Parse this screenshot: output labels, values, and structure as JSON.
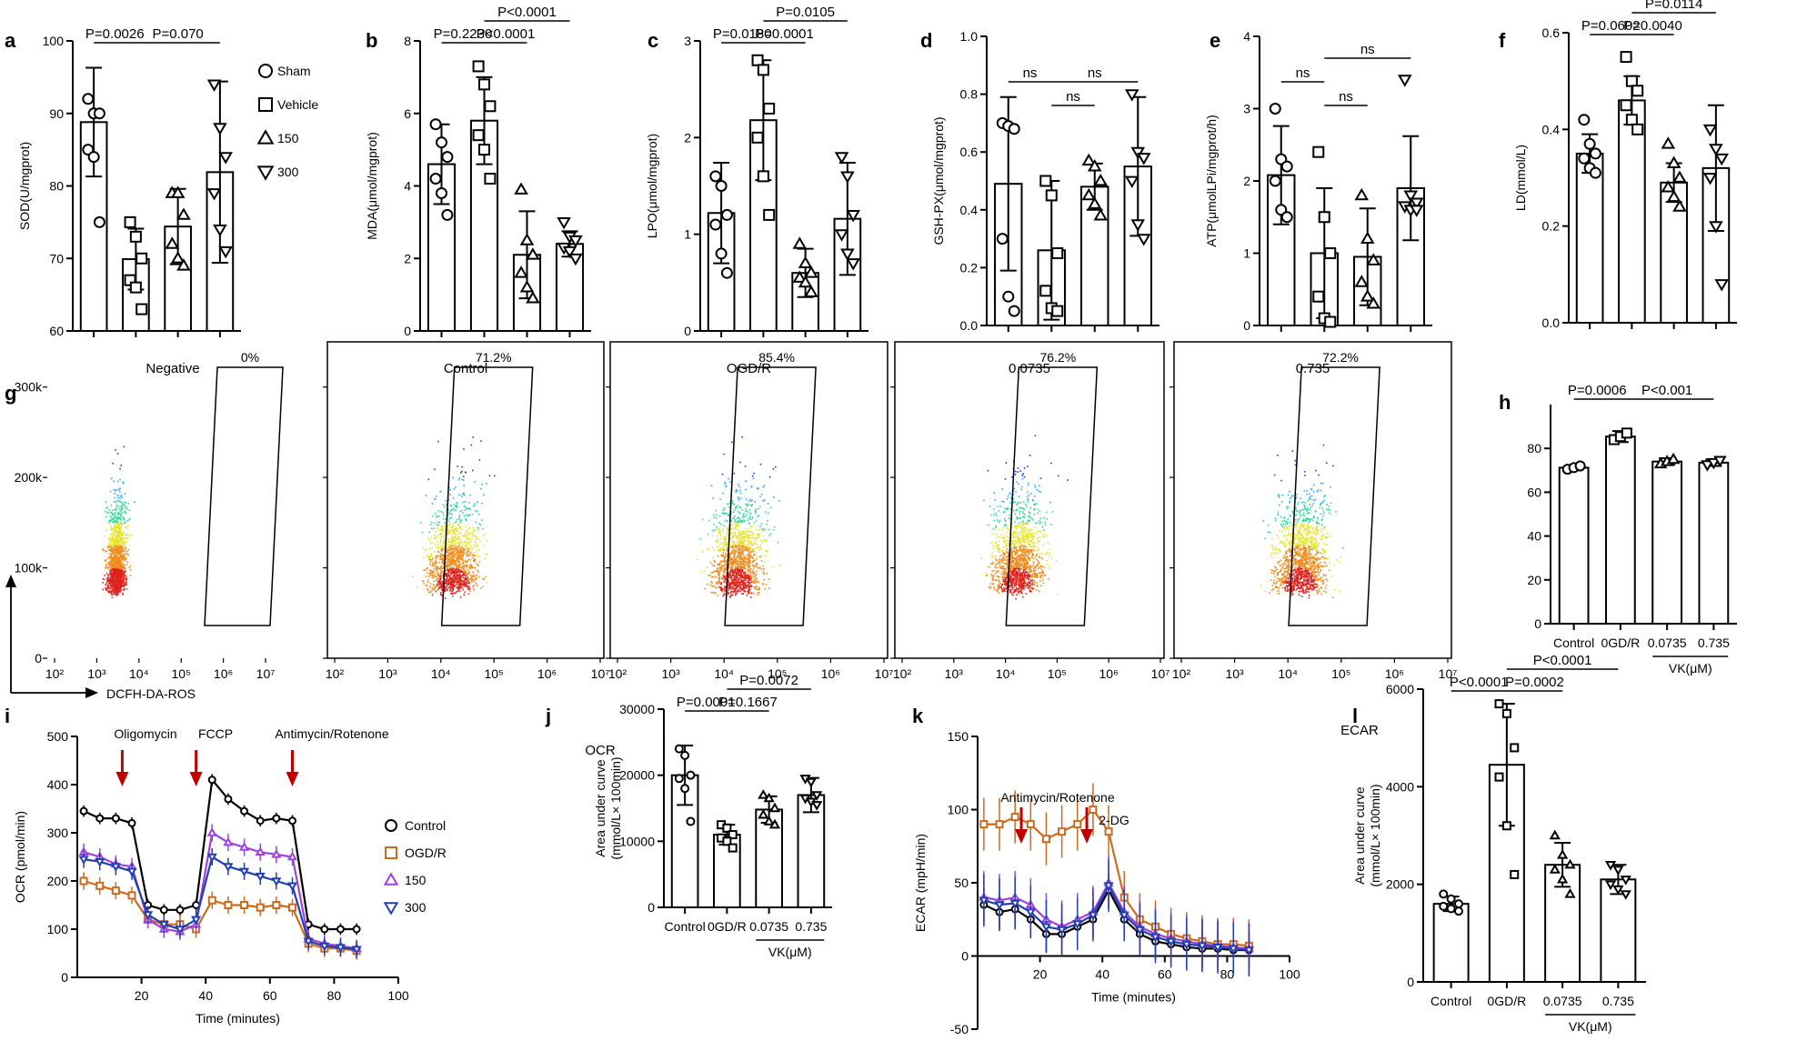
{
  "chart_data": [
    {
      "id": "a",
      "type": "bar",
      "panel_label": "a",
      "ylabel": "SOD(U/mgprot)",
      "ylim": [
        60,
        100
      ],
      "yticks": [
        60,
        70,
        80,
        90,
        100
      ],
      "categories": [
        "Sham",
        "Vehicle",
        "150",
        "300"
      ],
      "means": [
        88.8,
        69.9,
        74.4,
        81.9
      ],
      "sd": [
        7.5,
        4.2,
        5.2,
        12.5
      ],
      "points": [
        [
          92,
          90,
          90,
          85,
          84,
          75
        ],
        [
          75,
          73,
          70,
          67,
          66,
          63
        ],
        [
          79,
          79,
          76,
          72,
          70,
          69
        ],
        [
          94,
          88,
          84,
          79,
          74,
          71
        ]
      ],
      "comparisons": [
        {
          "from": 0,
          "to": 1,
          "label": "P=0.0026",
          "level": 0
        },
        {
          "from": 1,
          "to": 3,
          "label": "P=0.070",
          "level": 0
        }
      ],
      "legend": [
        "Sham",
        "Vehicle",
        "150",
        "300"
      ]
    },
    {
      "id": "b",
      "type": "bar",
      "panel_label": "b",
      "ylabel": "MDA(μmol/mgprot)",
      "ylim": [
        0,
        8
      ],
      "yticks": [
        0,
        2,
        4,
        6,
        8
      ],
      "categories": [
        "Sham",
        "Vehicle",
        "150",
        "300"
      ],
      "means": [
        4.6,
        5.8,
        2.1,
        2.4
      ],
      "sd": [
        1.1,
        1.2,
        1.2,
        0.35
      ],
      "points": [
        [
          5.7,
          5.2,
          4.8,
          4.2,
          3.8,
          3.2
        ],
        [
          7.3,
          6.8,
          6.2,
          5.4,
          5.0,
          4.2
        ],
        [
          3.9,
          2.5,
          2.1,
          1.6,
          1.2,
          0.9
        ],
        [
          3.0,
          2.6,
          2.5,
          2.3,
          2.2,
          2.0
        ]
      ],
      "comparisons": [
        {
          "from": 0,
          "to": 1,
          "label": "P=0.2230",
          "level": 0
        },
        {
          "from": 1,
          "to": 2,
          "label": "P<0.0001",
          "level": 0
        },
        {
          "from": 1,
          "to": 3,
          "label": "P<0.0001",
          "level": 1
        }
      ]
    },
    {
      "id": "c",
      "type": "bar",
      "panel_label": "c",
      "ylabel": "LPO(μmol/mgprot)",
      "ylim": [
        0,
        3
      ],
      "yticks": [
        0,
        1,
        2,
        3
      ],
      "categories": [
        "Sham",
        "Vehicle",
        "150",
        "300"
      ],
      "means": [
        1.22,
        2.18,
        0.6,
        1.16
      ],
      "sd": [
        0.52,
        0.62,
        0.25,
        0.58
      ],
      "points": [
        [
          1.6,
          1.5,
          1.2,
          1.1,
          0.8,
          0.6
        ],
        [
          2.8,
          2.7,
          2.3,
          2.0,
          1.6,
          1.2
        ],
        [
          0.9,
          0.7,
          0.6,
          0.55,
          0.5,
          0.4
        ],
        [
          1.8,
          1.6,
          1.2,
          1.0,
          0.8,
          0.7
        ]
      ],
      "comparisons": [
        {
          "from": 0,
          "to": 1,
          "label": "P=0.0180",
          "level": 0
        },
        {
          "from": 1,
          "to": 2,
          "label": "P=0.0001",
          "level": 0
        },
        {
          "from": 1,
          "to": 3,
          "label": "P=0.0105",
          "level": 1
        }
      ]
    },
    {
      "id": "d",
      "type": "bar",
      "panel_label": "d",
      "ylabel": "GSH-PX(μmol/mgprot)",
      "ylim": [
        0,
        1
      ],
      "yticks": [
        0,
        0.2,
        0.4,
        0.6,
        0.8,
        1.0
      ],
      "categories": [
        "Sham",
        "Vehicle",
        "150",
        "300"
      ],
      "means": [
        0.49,
        0.26,
        0.48,
        0.55
      ],
      "sd": [
        0.3,
        0.24,
        0.08,
        0.24
      ],
      "points": [
        [
          0.7,
          0.69,
          0.68,
          0.3,
          0.1,
          0.05
        ],
        [
          0.5,
          0.45,
          0.25,
          0.12,
          0.06,
          0.05
        ],
        [
          0.57,
          0.55,
          0.5,
          0.45,
          0.42,
          0.38
        ],
        [
          0.8,
          0.6,
          0.58,
          0.5,
          0.35,
          0.3
        ]
      ],
      "comparisons": [
        {
          "from": 0,
          "to": 1,
          "label": "ns",
          "level": 1
        },
        {
          "from": 1,
          "to": 2,
          "label": "ns",
          "level": 0
        },
        {
          "from": 1,
          "to": 3,
          "label": "ns",
          "level": 1
        }
      ]
    },
    {
      "id": "e",
      "type": "bar",
      "panel_label": "e",
      "ylabel": "ATP(μmolLPi/mgprot/h)",
      "ylim": [
        0,
        4
      ],
      "yticks": [
        0,
        1,
        2,
        3,
        4
      ],
      "categories": [
        "Sham",
        "Vehicle",
        "150",
        "300"
      ],
      "means": [
        2.08,
        1.0,
        0.95,
        1.9
      ],
      "sd": [
        0.68,
        0.9,
        0.67,
        0.72
      ],
      "points": [
        [
          3.0,
          2.3,
          2.2,
          2.0,
          1.6,
          1.5
        ],
        [
          2.4,
          1.5,
          1.0,
          0.4,
          0.1,
          0.05
        ],
        [
          1.8,
          1.2,
          0.9,
          0.6,
          0.4,
          0.3
        ],
        [
          3.4,
          1.8,
          1.7,
          1.65,
          1.6,
          1.6
        ]
      ],
      "comparisons": [
        {
          "from": 0,
          "to": 1,
          "label": "ns",
          "level": 1
        },
        {
          "from": 1,
          "to": 2,
          "label": "ns",
          "level": 0
        },
        {
          "from": 1,
          "to": 3,
          "label": "ns",
          "level": 2
        }
      ]
    },
    {
      "id": "f",
      "type": "bar",
      "panel_label": "f",
      "ylabel": "LD(mmol/L)",
      "ylim": [
        0,
        0.6
      ],
      "yticks": [
        0,
        0.2,
        0.4,
        0.6
      ],
      "categories": [
        "Sham",
        "Vehicle",
        "150",
        "300"
      ],
      "means": [
        0.35,
        0.46,
        0.29,
        0.32
      ],
      "sd": [
        0.04,
        0.05,
        0.04,
        0.13
      ],
      "points": [
        [
          0.42,
          0.37,
          0.35,
          0.34,
          0.32,
          0.31
        ],
        [
          0.55,
          0.5,
          0.48,
          0.45,
          0.42,
          0.4
        ],
        [
          0.37,
          0.33,
          0.3,
          0.28,
          0.26,
          0.24
        ],
        [
          0.4,
          0.36,
          0.34,
          0.3,
          0.2,
          0.08
        ]
      ],
      "comparisons": [
        {
          "from": 0,
          "to": 1,
          "label": "P=0.0602",
          "level": 0
        },
        {
          "from": 1,
          "to": 2,
          "label": "P=0.0040",
          "level": 0
        },
        {
          "from": 1,
          "to": 3,
          "label": "P=0.0114",
          "level": 1
        }
      ]
    },
    {
      "id": "h",
      "type": "bar",
      "panel_label": "h",
      "ylim": [
        0,
        100
      ],
      "yticks": [
        0,
        20,
        40,
        60,
        80
      ],
      "categories": [
        "Control",
        "0GD/R",
        "0.0735",
        "0.735"
      ],
      "means": [
        71.2,
        85.4,
        74,
        73.5
      ],
      "sd": [
        1.2,
        2.5,
        1.5,
        1.5
      ],
      "points": [
        [
          70.5,
          71.2,
          72
        ],
        [
          84,
          85.4,
          87
        ],
        [
          73,
          74,
          75
        ],
        [
          72.5,
          73.5,
          74.5
        ]
      ],
      "comparisons": [
        {
          "from": 0,
          "to": 1,
          "label": "P=0.0006",
          "level": 0
        },
        {
          "from": 1,
          "to": 3,
          "label": "P<0.001",
          "level": 0
        }
      ],
      "group_label": "VK(μM)"
    },
    {
      "id": "j",
      "type": "bar",
      "panel_label": "j",
      "title": "OCR",
      "ylabel": "Area under curve\n(mmol/L× 100min)",
      "ylim": [
        0,
        30000
      ],
      "yticks": [
        0,
        10000,
        20000,
        30000
      ],
      "categories": [
        "Control",
        "0GD/R",
        "0.0735",
        "0.735"
      ],
      "means": [
        20000,
        11000,
        14800,
        17000
      ],
      "sd": [
        4500,
        1500,
        2000,
        2600
      ],
      "points": [
        [
          24000,
          23000,
          20000,
          19500,
          18000,
          13000
        ],
        [
          12500,
          12000,
          11000,
          10500,
          10000,
          9000
        ],
        [
          17000,
          16500,
          15000,
          14000,
          13000,
          12500
        ],
        [
          19500,
          19000,
          17000,
          16500,
          16000,
          15500
        ]
      ],
      "comparisons": [
        {
          "from": 0,
          "to": 1,
          "label": "P=0.0001",
          "level": 0
        },
        {
          "from": 1,
          "to": 2,
          "label": "P=0.1667",
          "level": 0
        },
        {
          "from": 1,
          "to": 3,
          "label": "P=0.0072",
          "level": 1
        }
      ],
      "group_label": "VK(μM)"
    },
    {
      "id": "l",
      "type": "bar",
      "panel_label": "l",
      "title": "ECAR",
      "ylabel": "Area under curve\n(mmol/L× 100min)",
      "ylim": [
        0,
        6000
      ],
      "yticks": [
        0,
        2000,
        4000,
        6000
      ],
      "categories": [
        "Control",
        "0GD/R",
        "0.0735",
        "0.735"
      ],
      "means": [
        1600,
        4450,
        2400,
        2100
      ],
      "sd": [
        150,
        1250,
        450,
        300
      ],
      "points": [
        [
          1800,
          1700,
          1600,
          1550,
          1500,
          1450
        ],
        [
          5700,
          5500,
          4800,
          4200,
          3200,
          2200
        ],
        [
          3000,
          2600,
          2400,
          2300,
          2100,
          1800
        ],
        [
          2400,
          2300,
          2100,
          2000,
          1900,
          1800
        ]
      ],
      "comparisons": [
        {
          "from": 0,
          "to": 1,
          "label": "P<0.0001",
          "level": 0
        },
        {
          "from": 1,
          "to": 2,
          "label": "P=0.0002",
          "level": 0
        },
        {
          "from": 1,
          "to": 3,
          "label": "P<0.0001",
          "level": 1
        }
      ],
      "group_label": "VK(μM)"
    },
    {
      "id": "g",
      "type": "scatter",
      "panel_label": "g",
      "xlabel": "DCFH-DA-ROS",
      "ylim": [
        0,
        350000
      ],
      "ytick_labels": [
        "0",
        "100k",
        "200k",
        "300k"
      ],
      "yticks": [
        0,
        100000,
        200000,
        300000
      ],
      "xtick_labels": [
        "10²",
        "10³",
        "10⁴",
        "10⁵",
        "10⁶",
        "10⁷"
      ],
      "subpanels": [
        {
          "title": "Negative",
          "gate_percent": "0%"
        },
        {
          "title": "Control",
          "gate_percent": "71.2%"
        },
        {
          "title": "OGD/R",
          "gate_percent": "85.4%"
        },
        {
          "title": "0.0735",
          "gate_percent": "76.2%"
        },
        {
          "title": "0.735",
          "gate_percent": "72.2%"
        }
      ]
    },
    {
      "id": "i",
      "type": "line",
      "panel_label": "i",
      "xlabel": "Time (minutes)",
      "ylabel": "OCR (pmol/min)",
      "xlim": [
        0,
        100
      ],
      "ylim": [
        0,
        500
      ],
      "xticks": [
        20,
        40,
        60,
        80,
        100
      ],
      "yticks": [
        0,
        100,
        200,
        300,
        400,
        500
      ],
      "x": [
        2,
        7,
        12,
        17,
        22,
        27,
        32,
        37,
        42,
        47,
        52,
        57,
        62,
        67,
        72,
        77,
        82,
        87
      ],
      "series": [
        {
          "name": "Control",
          "color": "#000000",
          "values": [
            345,
            330,
            330,
            320,
            150,
            140,
            140,
            150,
            410,
            370,
            345,
            325,
            330,
            325,
            110,
            100,
            100,
            100
          ]
        },
        {
          "name": "OGD/R",
          "color": "#cc6a1e",
          "values": [
            200,
            190,
            180,
            170,
            120,
            110,
            110,
            100,
            160,
            150,
            150,
            145,
            150,
            145,
            70,
            60,
            60,
            55
          ]
        },
        {
          "name": "150",
          "color": "#a040e0",
          "values": [
            260,
            250,
            235,
            230,
            120,
            100,
            95,
            110,
            300,
            280,
            270,
            260,
            255,
            250,
            80,
            70,
            65,
            60
          ]
        },
        {
          "name": "300",
          "color": "#2040b0",
          "values": [
            245,
            240,
            230,
            220,
            130,
            110,
            100,
            120,
            250,
            230,
            220,
            210,
            200,
            190,
            75,
            65,
            62,
            58
          ]
        }
      ],
      "annotations": [
        "Oligomycin",
        "FCCP",
        "Antimycin/Rotenone"
      ]
    },
    {
      "id": "k",
      "type": "line",
      "panel_label": "k",
      "xlabel": "Time (minutes)",
      "ylabel": "ECAR (mpH/min)",
      "xlim": [
        0,
        100
      ],
      "ylim": [
        -50,
        150
      ],
      "xticks": [
        20,
        40,
        60,
        80,
        100
      ],
      "yticks": [
        -50,
        0,
        50,
        100,
        150
      ],
      "x": [
        2,
        7,
        12,
        17,
        22,
        27,
        32,
        37,
        42,
        47,
        52,
        57,
        62,
        67,
        72,
        77,
        82,
        87
      ],
      "series": [
        {
          "name": "Control",
          "color": "#000000",
          "values": [
            35,
            30,
            32,
            25,
            15,
            15,
            20,
            25,
            45,
            25,
            15,
            10,
            8,
            6,
            5,
            5,
            4,
            4
          ]
        },
        {
          "name": "OGD/R",
          "color": "#cc6a1e",
          "values": [
            90,
            90,
            95,
            90,
            80,
            85,
            90,
            100,
            85,
            40,
            25,
            20,
            15,
            12,
            10,
            8,
            8,
            7
          ]
        },
        {
          "name": "150",
          "color": "#a040e0",
          "values": [
            40,
            38,
            40,
            35,
            25,
            20,
            25,
            30,
            50,
            30,
            20,
            15,
            12,
            10,
            8,
            7,
            6,
            5
          ]
        },
        {
          "name": "300",
          "color": "#2040b0",
          "values": [
            38,
            35,
            36,
            30,
            20,
            18,
            22,
            28,
            48,
            28,
            18,
            13,
            10,
            8,
            7,
            6,
            5,
            4
          ]
        }
      ],
      "annotations": [
        "Antimycin/Rotenone",
        "2-DG"
      ]
    }
  ]
}
